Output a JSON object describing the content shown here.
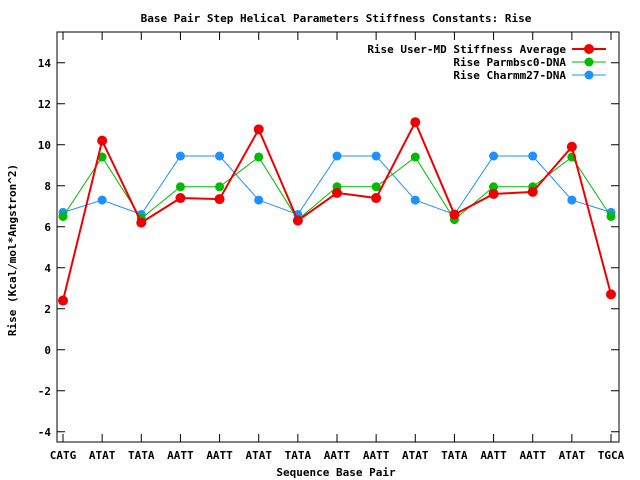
{
  "chart_data": {
    "type": "line",
    "title": "Base Pair Step Helical Parameters Stiffness Constants: Rise",
    "xlabel": "Sequence Base Pair",
    "ylabel": "Rise (Kcal/mol*Angstron^2)",
    "categories": [
      "CATG",
      "ATAT",
      "TATA",
      "AATT",
      "AATT",
      "ATAT",
      "TATA",
      "AATT",
      "AATT",
      "ATAT",
      "TATA",
      "AATT",
      "AATT",
      "ATAT",
      "TGCA"
    ],
    "ylim": [
      -4.5,
      15.5
    ],
    "yticks": [
      -4,
      -2,
      0,
      2,
      4,
      6,
      8,
      10,
      12,
      14
    ],
    "ytick_labels": [
      "-4",
      "-2",
      "0",
      "2",
      "4",
      "6",
      "8",
      "10",
      "12",
      "14"
    ],
    "grid": false,
    "legend_position": "top-right",
    "series": [
      {
        "name": "Rise User-MD Stiffness Average",
        "color": "#ee0000",
        "values": [
          2.4,
          10.2,
          6.2,
          7.4,
          7.35,
          10.75,
          6.3,
          7.65,
          7.4,
          11.1,
          6.6,
          7.6,
          7.7,
          9.9,
          2.7
        ]
      },
      {
        "name": "Rise Parmbsc0-DNA",
        "color": "#00bb00",
        "values": [
          6.5,
          9.4,
          6.4,
          7.95,
          7.95,
          9.4,
          6.35,
          7.95,
          7.95,
          9.4,
          6.35,
          7.95,
          7.95,
          9.4,
          6.5
        ]
      },
      {
        "name": "Rise Charmm27-DNA",
        "color": "#1e90ff",
        "values": [
          6.7,
          7.3,
          6.6,
          9.45,
          9.45,
          7.3,
          6.6,
          9.45,
          9.45,
          7.3,
          6.6,
          9.45,
          9.45,
          7.3,
          6.7
        ]
      }
    ]
  }
}
